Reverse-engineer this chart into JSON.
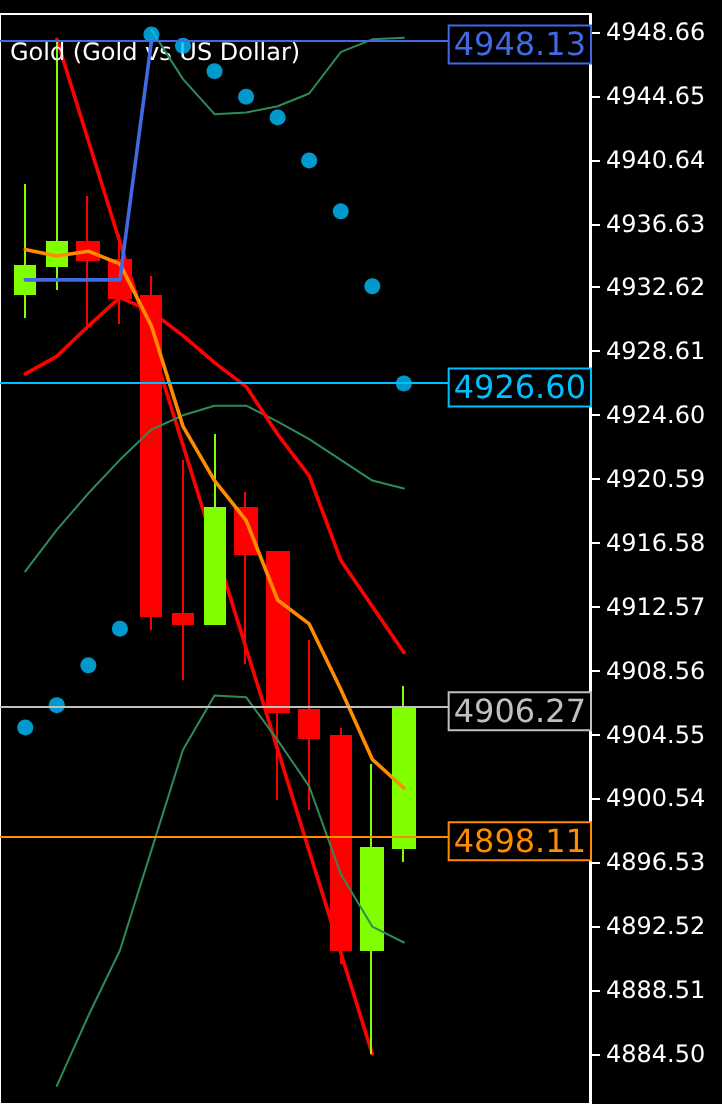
{
  "chart_data": {
    "type": "candlestick",
    "title": "Gold (Gold vs US Dollar)",
    "categories": [
      null,
      null,
      null,
      null,
      null,
      null,
      null,
      null,
      null,
      null,
      null,
      null,
      null
    ],
    "ohlc": [
      [
        4932.21,
        4939.12,
        4930.71,
        4933.97
      ],
      [
        4933.97,
        4948.16,
        4932.46,
        4935.48
      ],
      [
        4935.48,
        4938.36,
        4929.95,
        4934.35
      ],
      [
        4934.35,
        4935.98,
        4930.33,
        4931.96
      ],
      [
        4932.09,
        4933.34,
        4911.12,
        4912.0
      ],
      [
        4912.12,
        4921.79,
        4907.98,
        4911.49
      ],
      [
        4911.49,
        4923.42,
        4911.49,
        4918.78
      ],
      [
        4918.78,
        4919.78,
        4908.98,
        4915.89
      ],
      [
        4916.01,
        4916.01,
        4900.44,
        4905.97
      ],
      [
        4906.1,
        4910.49,
        4899.82,
        4904.34
      ],
      [
        4904.46,
        4904.97,
        4890.15,
        4891.03
      ],
      [
        4891.03,
        4902.71,
        4884.5,
        4897.43
      ],
      [
        4897.43,
        4907.6,
        4896.55,
        4906.27
      ]
    ],
    "colors": [
      "#7fff00",
      "#7fff00",
      "#ff0000",
      "#ff0000",
      "#ff0000",
      "#ff0000",
      "#7fff00",
      "#ff0000",
      "#ff0000",
      "#ff0000",
      "#ff0000",
      "#7fff00",
      "#7fff00"
    ],
    "series": [
      {
        "type": "line",
        "color": "#2e8b57",
        "values": [
          null,
          null,
          null,
          null,
          4948.8,
          4945.7,
          4943.5,
          4943.6,
          4944.0,
          4944.8,
          4947.4,
          4948.2,
          4948.3
        ]
      },
      {
        "type": "line",
        "color": "#2e8b57",
        "values": [
          4914.8,
          4917.4,
          4919.7,
          4921.8,
          4923.7,
          4924.6,
          4925.2,
          4925.2,
          4924.2,
          4923.1,
          4921.8,
          4920.5,
          4920.0
        ]
      },
      {
        "type": "line",
        "color": "#2e8b57",
        "values": [
          null,
          4882.5,
          4886.9,
          4891.0,
          4897.3,
          4903.6,
          4907.0,
          4906.9,
          4904.2,
          4901.3,
          4895.8,
          4892.5,
          4891.5
        ]
      },
      {
        "type": "line",
        "color": "#ff0000",
        "values": [
          4927.2,
          4928.3,
          4930.2,
          4932.0,
          4931.1,
          4929.6,
          4927.9,
          4926.4,
          4923.4,
          4920.8,
          4915.5,
          4912.6,
          4909.7
        ]
      },
      {
        "type": "line",
        "color": "#ff8c00",
        "values": [
          4935.0,
          4934.6,
          4934.9,
          4934.1,
          4930.2,
          4923.9,
          4920.5,
          4918.0,
          4913.0,
          4911.5,
          4907.4,
          4903.0,
          4901.2
        ]
      },
      {
        "type": "line",
        "color": "#ff0000",
        "values": [
          null,
          4948.2,
          null,
          null,
          null,
          null,
          null,
          null,
          null,
          null,
          null,
          4884.5,
          null
        ]
      },
      {
        "type": "line",
        "color": "#4169e1",
        "values": [
          4933.1,
          4933.1,
          4933.1,
          4933.1,
          4948.1,
          null,
          null,
          null,
          null,
          null,
          null,
          null,
          null
        ]
      },
      {
        "type": "scatter",
        "color": "#00bfff",
        "marker": "circle",
        "values": [
          4905.0,
          4906.4,
          4908.9,
          4911.2,
          4948.5,
          4947.8,
          4946.2,
          4944.6,
          4943.3,
          4940.6,
          4937.4,
          4932.7,
          4926.6
        ]
      }
    ],
    "ylim": [
      4881.36,
      4949.79
    ],
    "yticks": [
      4948.66,
      4944.65,
      4940.64,
      4936.63,
      4932.62,
      4928.61,
      {
        "value": 4924.6,
        "label": "4924.60"
      },
      4920.59,
      4916.58,
      4912.57,
      4908.56,
      4904.55,
      4900.54,
      4896.53,
      4892.52,
      4888.51,
      {
        "value": 4884.5,
        "label": "4884.50"
      }
    ],
    "ref_lines": [
      {
        "axis": "y",
        "value": 4948.13,
        "label": "4948.13",
        "color": "#4169e1"
      },
      {
        "axis": "y",
        "value": 4926.6,
        "label": "4926.60",
        "color": "#00bfff"
      },
      {
        "axis": "y",
        "value": 4906.27,
        "label": "4906.27",
        "color": "#c0c0c0"
      },
      {
        "axis": "y",
        "value": 4898.11,
        "label": "4898.11",
        "color": "#ff8c00"
      }
    ]
  }
}
